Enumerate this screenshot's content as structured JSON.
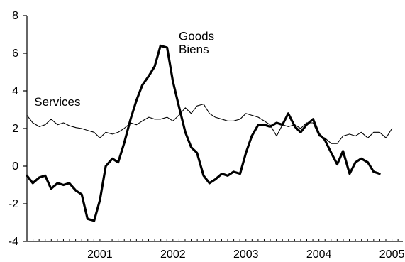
{
  "chart_data": {
    "type": "line",
    "title": "",
    "xlabel": "",
    "ylabel": "",
    "ylim": [
      -4,
      8
    ],
    "yticks": [
      -4,
      -2,
      0,
      2,
      4,
      6,
      8
    ],
    "xlim": [
      2000.5,
      2005.65
    ],
    "xtick_labels": [
      "2001",
      "2002",
      "2003",
      "2004",
      "2005"
    ],
    "grid": false,
    "legend": "none",
    "series": [
      {
        "name": "Services",
        "style": "thin",
        "color": "#000000",
        "points": [
          [
            2000.5,
            2.7
          ],
          [
            2000.58,
            2.3
          ],
          [
            2000.67,
            2.1
          ],
          [
            2000.75,
            2.2
          ],
          [
            2000.83,
            2.5
          ],
          [
            2000.92,
            2.2
          ],
          [
            2001.0,
            2.3
          ],
          [
            2001.08,
            2.15
          ],
          [
            2001.17,
            2.05
          ],
          [
            2001.25,
            2.0
          ],
          [
            2001.33,
            1.9
          ],
          [
            2001.42,
            1.8
          ],
          [
            2001.5,
            1.5
          ],
          [
            2001.58,
            1.8
          ],
          [
            2001.67,
            1.7
          ],
          [
            2001.75,
            1.8
          ],
          [
            2001.83,
            2.0
          ],
          [
            2001.92,
            2.3
          ],
          [
            2002.0,
            2.2
          ],
          [
            2002.08,
            2.4
          ],
          [
            2002.17,
            2.6
          ],
          [
            2002.25,
            2.5
          ],
          [
            2002.33,
            2.5
          ],
          [
            2002.42,
            2.6
          ],
          [
            2002.5,
            2.4
          ],
          [
            2002.58,
            2.7
          ],
          [
            2002.67,
            3.1
          ],
          [
            2002.75,
            2.8
          ],
          [
            2002.83,
            3.2
          ],
          [
            2002.92,
            3.3
          ],
          [
            2003.0,
            2.8
          ],
          [
            2003.08,
            2.6
          ],
          [
            2003.17,
            2.5
          ],
          [
            2003.25,
            2.4
          ],
          [
            2003.33,
            2.4
          ],
          [
            2003.42,
            2.5
          ],
          [
            2003.5,
            2.8
          ],
          [
            2003.58,
            2.7
          ],
          [
            2003.67,
            2.6
          ],
          [
            2003.75,
            2.4
          ],
          [
            2003.83,
            2.2
          ],
          [
            2003.92,
            1.6
          ],
          [
            2004.0,
            2.2
          ],
          [
            2004.08,
            2.1
          ],
          [
            2004.17,
            2.2
          ],
          [
            2004.25,
            2.0
          ],
          [
            2004.33,
            2.3
          ],
          [
            2004.42,
            2.3
          ],
          [
            2004.5,
            1.6
          ],
          [
            2004.58,
            1.5
          ],
          [
            2004.67,
            1.2
          ],
          [
            2004.75,
            1.2
          ],
          [
            2004.83,
            1.6
          ],
          [
            2004.92,
            1.7
          ],
          [
            2005.0,
            1.6
          ],
          [
            2005.08,
            1.8
          ],
          [
            2005.17,
            1.5
          ],
          [
            2005.25,
            1.8
          ],
          [
            2005.33,
            1.8
          ],
          [
            2005.42,
            1.5
          ],
          [
            2005.5,
            2.0
          ]
        ]
      },
      {
        "name": "Goods",
        "style": "thick",
        "color": "#000000",
        "points": [
          [
            2000.5,
            -0.5
          ],
          [
            2000.58,
            -0.9
          ],
          [
            2000.67,
            -0.6
          ],
          [
            2000.75,
            -0.5
          ],
          [
            2000.83,
            -1.2
          ],
          [
            2000.92,
            -0.9
          ],
          [
            2001.0,
            -1.0
          ],
          [
            2001.08,
            -0.9
          ],
          [
            2001.17,
            -1.3
          ],
          [
            2001.25,
            -1.5
          ],
          [
            2001.33,
            -2.8
          ],
          [
            2001.42,
            -2.9
          ],
          [
            2001.5,
            -1.8
          ],
          [
            2001.58,
            0.0
          ],
          [
            2001.67,
            0.4
          ],
          [
            2001.75,
            0.2
          ],
          [
            2001.83,
            1.2
          ],
          [
            2001.92,
            2.5
          ],
          [
            2002.0,
            3.5
          ],
          [
            2002.08,
            4.3
          ],
          [
            2002.17,
            4.8
          ],
          [
            2002.25,
            5.3
          ],
          [
            2002.33,
            6.4
          ],
          [
            2002.42,
            6.3
          ],
          [
            2002.5,
            4.5
          ],
          [
            2002.58,
            3.2
          ],
          [
            2002.67,
            1.8
          ],
          [
            2002.75,
            1.0
          ],
          [
            2002.83,
            0.7
          ],
          [
            2002.92,
            -0.5
          ],
          [
            2003.0,
            -0.9
          ],
          [
            2003.08,
            -0.7
          ],
          [
            2003.17,
            -0.4
          ],
          [
            2003.25,
            -0.5
          ],
          [
            2003.33,
            -0.3
          ],
          [
            2003.42,
            -0.4
          ],
          [
            2003.5,
            0.7
          ],
          [
            2003.58,
            1.6
          ],
          [
            2003.67,
            2.2
          ],
          [
            2003.75,
            2.2
          ],
          [
            2003.83,
            2.1
          ],
          [
            2003.92,
            2.3
          ],
          [
            2004.0,
            2.2
          ],
          [
            2004.08,
            2.8
          ],
          [
            2004.17,
            2.1
          ],
          [
            2004.25,
            1.8
          ],
          [
            2004.33,
            2.2
          ],
          [
            2004.42,
            2.5
          ],
          [
            2004.5,
            1.7
          ],
          [
            2004.58,
            1.4
          ],
          [
            2004.67,
            0.7
          ],
          [
            2004.75,
            0.1
          ],
          [
            2004.83,
            0.8
          ],
          [
            2004.92,
            -0.4
          ],
          [
            2005.0,
            0.2
          ],
          [
            2005.08,
            0.4
          ],
          [
            2005.17,
            0.2
          ],
          [
            2005.25,
            -0.3
          ],
          [
            2005.33,
            -0.4
          ]
        ]
      }
    ],
    "annotations": [
      {
        "text": "Services",
        "at": [
          2000.6,
          3.2
        ]
      },
      {
        "text": "Goods",
        "at": [
          2002.58,
          6.7
        ]
      },
      {
        "text": "Biens",
        "at": [
          2002.58,
          6.0
        ]
      }
    ]
  }
}
